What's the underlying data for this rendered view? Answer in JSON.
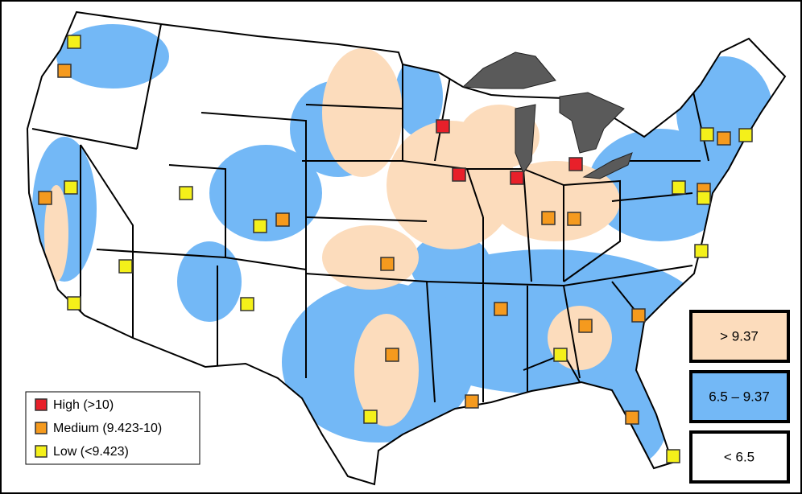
{
  "marker_legend": [
    {
      "label": "High (>10)",
      "color": "#e8202a"
    },
    {
      "label": "Medium (9.423-10)",
      "color": "#f59a1e"
    },
    {
      "label": "Low (<9.423)",
      "color": "#f4f01a"
    }
  ],
  "range_legend": [
    {
      "label": "> 9.37",
      "color": "#fcdcbc"
    },
    {
      "label": "6.5 – 9.37",
      "color": "#73b8f6"
    },
    {
      "label": "< 6.5",
      "color": "#ffffff"
    }
  ]
}
